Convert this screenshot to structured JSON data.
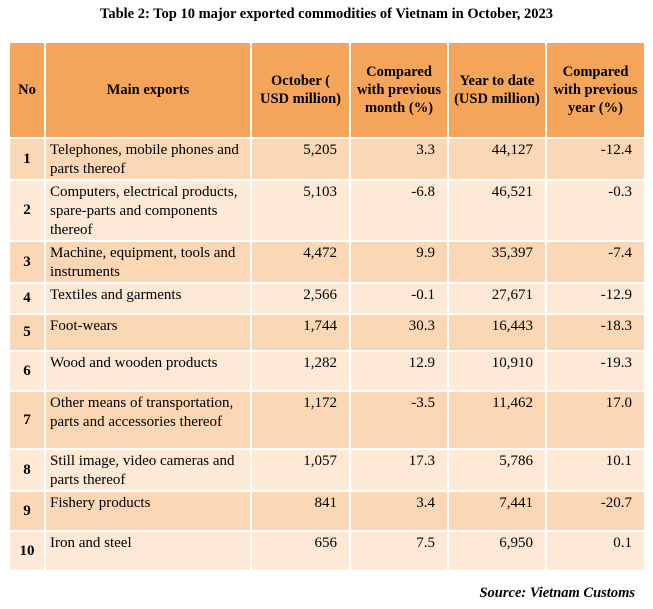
{
  "title": "Table 2: Top 10 major exported commodities of Vietnam in October, 2023",
  "headers": {
    "no": "No",
    "main_exports": "Main exports",
    "october": "October ( USD million)",
    "compared_month": "Compared with previous month (%)",
    "ytd": "Year to date (USD million)",
    "compared_year": "Compared with previous year (%)"
  },
  "rows": [
    {
      "no": "1",
      "name": "Telephones, mobile phones and  parts thereof",
      "october": "5,205",
      "mom": "3.3",
      "ytd": "44,127",
      "yoy": "-12.4"
    },
    {
      "no": "2",
      "name": "Computers, electrical products, spare-parts and components thereof",
      "october": "5,103",
      "mom": "-6.8",
      "ytd": "46,521",
      "yoy": "-0.3"
    },
    {
      "no": "3",
      "name": "Machine, equipment, tools and instruments",
      "october": "4,472",
      "mom": "9.9",
      "ytd": "35,397",
      "yoy": "-7.4"
    },
    {
      "no": "4",
      "name": "Textiles and garments",
      "october": "2,566",
      "mom": "-0.1",
      "ytd": "27,671",
      "yoy": "-12.9"
    },
    {
      "no": "5",
      "name": "Foot-wears",
      "october": "1,744",
      "mom": "30.3",
      "ytd": "16,443",
      "yoy": "-18.3"
    },
    {
      "no": "6",
      "name": "Wood and wooden products",
      "october": "1,282",
      "mom": "12.9",
      "ytd": "10,910",
      "yoy": "-19.3"
    },
    {
      "no": "7",
      "name": "Other means of transportation, parts and accessories thereof",
      "october": "1,172",
      "mom": "-3.5",
      "ytd": "11,462",
      "yoy": "17.0"
    },
    {
      "no": "8",
      "name": "Still image, video cameras and parts thereof",
      "october": "1,057",
      "mom": "17.3",
      "ytd": "5,786",
      "yoy": "10.1"
    },
    {
      "no": "9",
      "name": "Fishery products",
      "october": "841",
      "mom": "3.4",
      "ytd": "7,441",
      "yoy": "-20.7"
    },
    {
      "no": "10",
      "name": "Iron and steel",
      "october": "656",
      "mom": "7.5",
      "ytd": "6,950",
      "yoy": "0.1"
    }
  ],
  "source": "Source: Vietnam Customs",
  "colors": {
    "header": "#f5a55a",
    "row_odd": "#fbd7b5",
    "row_even": "#fde9d6"
  }
}
